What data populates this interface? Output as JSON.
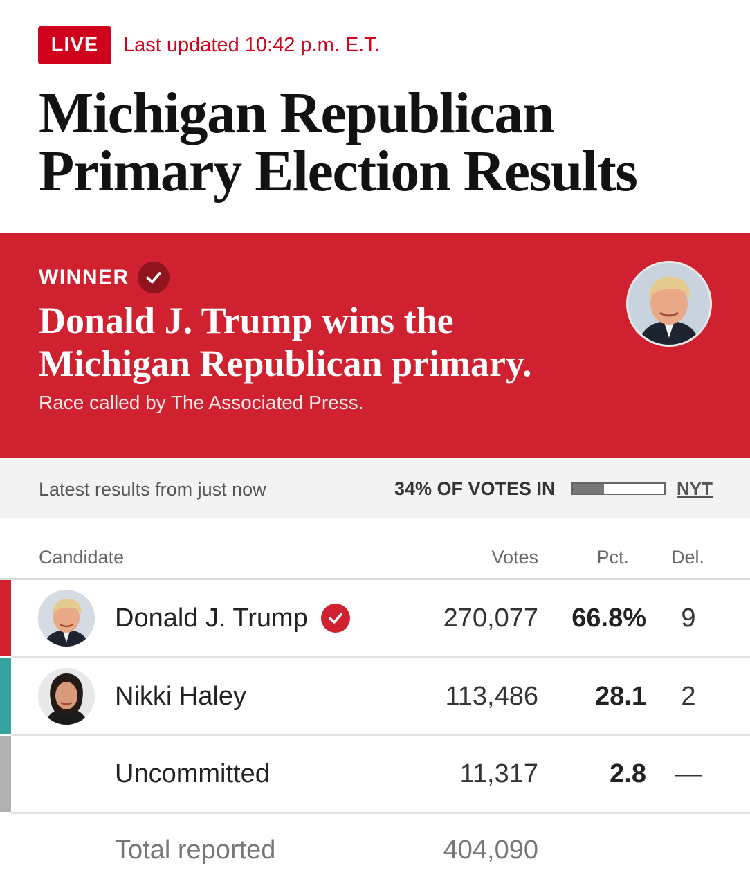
{
  "header": {
    "live_label": "LIVE",
    "last_updated": "Last updated 10:42 p.m. E.T.",
    "title": "Michigan Republican Primary Election Results"
  },
  "winner": {
    "label": "WINNER",
    "headline": "Donald J. Trump wins the Michigan Republican primary.",
    "subtext": "Race called by The Associated Press.",
    "icon": "check-icon",
    "photo": "candidate-photo-trump"
  },
  "status": {
    "latest": "Latest results from just now",
    "votes_in": "34% OF VOTES IN",
    "votes_in_fraction": 0.34,
    "source_link": "NYT"
  },
  "table": {
    "columns": {
      "candidate": "Candidate",
      "votes": "Votes",
      "pct": "Pct.",
      "del": "Del."
    },
    "rows": [
      {
        "name": "Donald J. Trump",
        "votes": "270,077",
        "pct": "66.8%",
        "del": "9",
        "color": "#cf212f",
        "winner": true,
        "photo": "candidate-photo-trump"
      },
      {
        "name": "Nikki Haley",
        "votes": "113,486",
        "pct": "28.1",
        "del": "2",
        "color": "#35a29f",
        "winner": false,
        "photo": "candidate-photo-haley"
      },
      {
        "name": "Uncommitted",
        "votes": "11,317",
        "pct": "2.8",
        "del": "—",
        "color": "#b0b0b0",
        "winner": false,
        "photo": ""
      }
    ],
    "total": {
      "label": "Total reported",
      "votes": "404,090"
    }
  },
  "colors": {
    "brand_red": "#cf212f",
    "live_red": "#d0021b",
    "haley_teal": "#35a29f",
    "uncommitted_gray": "#b0b0b0"
  }
}
